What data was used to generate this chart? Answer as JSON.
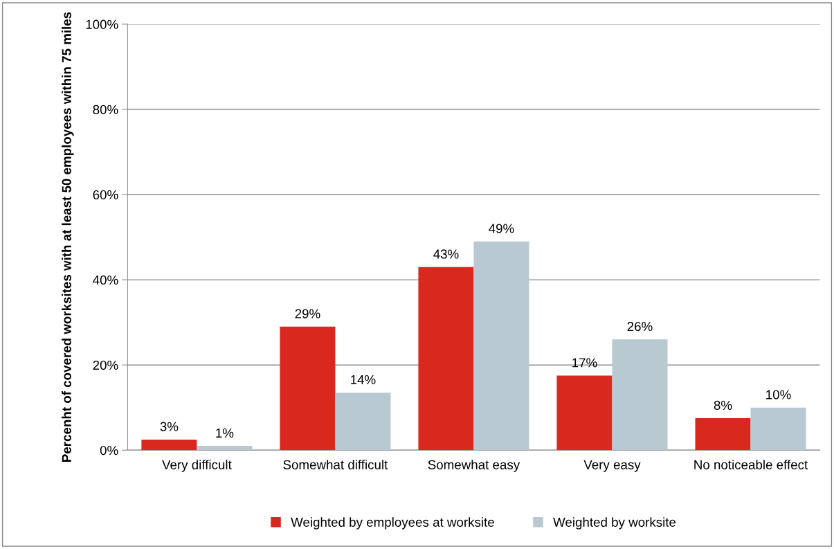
{
  "chart_data": {
    "type": "bar",
    "ylabel": "Percenht of covered worksites with at least 50 employees within 75 miles",
    "categories": [
      "Very difficult",
      "Somewhat difficult",
      "Somewhat easy",
      "Very easy",
      "No noticeable effect"
    ],
    "series": [
      {
        "name": "Weighted by employees at worksite",
        "color": "#d9291f",
        "values": [
          2.5,
          29,
          43,
          17.5,
          7.5
        ],
        "value_labels": [
          "3%",
          "29%",
          "43%",
          "17%",
          "8%"
        ]
      },
      {
        "name": "Weighted by worksite",
        "color": "#b8c9d2",
        "values": [
          1,
          13.5,
          49,
          26,
          10
        ],
        "value_labels": [
          "1%",
          "14%",
          "49%",
          "26%",
          "10%"
        ]
      }
    ],
    "ylim": [
      0,
      100
    ],
    "yticks": [
      {
        "value": 0,
        "label": "0%"
      },
      {
        "value": 20,
        "label": "20%"
      },
      {
        "value": 40,
        "label": "40%"
      },
      {
        "value": 60,
        "label": "60%"
      },
      {
        "value": 80,
        "label": "80%"
      },
      {
        "value": 100,
        "label": "100%"
      }
    ],
    "grid": "y",
    "legend": "bottom"
  }
}
